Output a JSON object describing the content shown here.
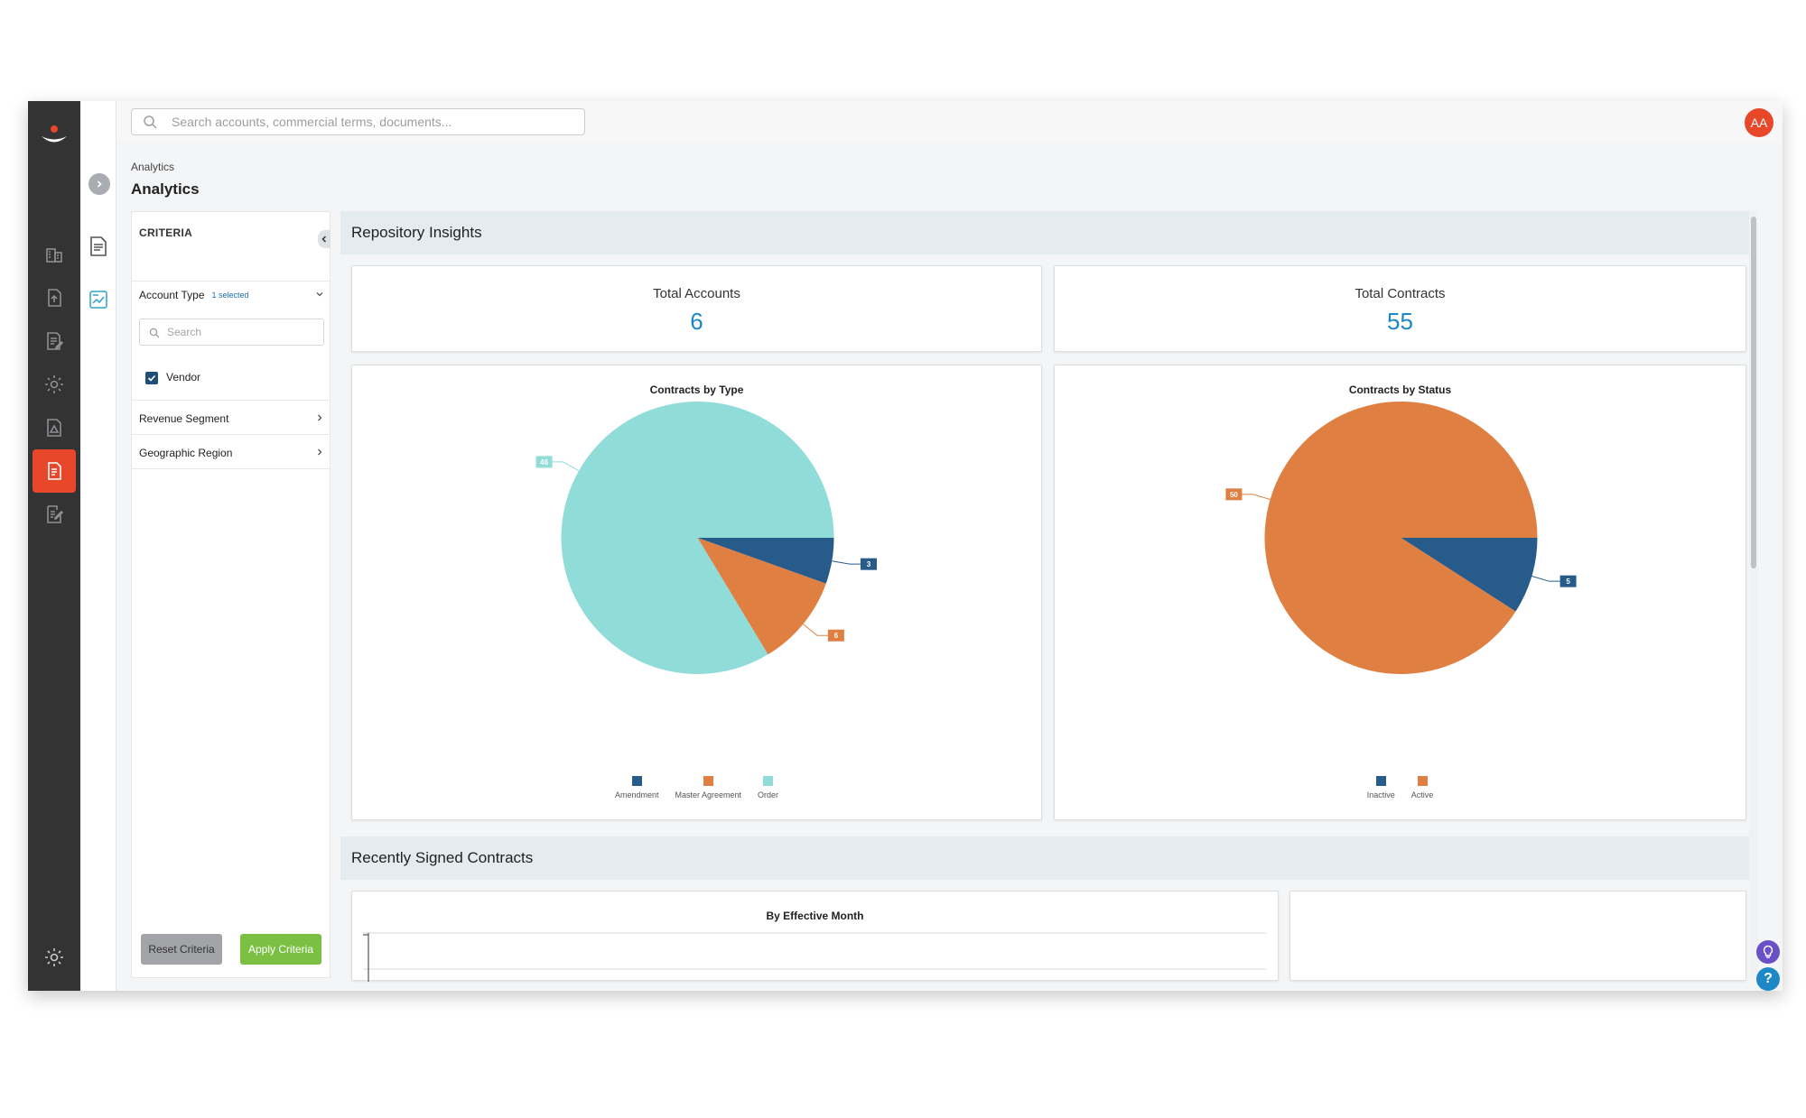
{
  "search": {
    "placeholder": "Search accounts, commercial terms, documents..."
  },
  "user": {
    "initials": "AA"
  },
  "breadcrumb": "Analytics",
  "page_title": "Analytics",
  "criteria": {
    "title": "CRITERIA",
    "account_type": {
      "label": "Account Type",
      "selected_note": "1 selected"
    },
    "search_placeholder": "Search",
    "vendor_label": "Vendor",
    "revenue_segment": "Revenue Segment",
    "geographic_region": "Geographic Region",
    "reset_label": "Reset Criteria",
    "apply_label": "Apply Criteria"
  },
  "insights": {
    "heading": "Repository Insights",
    "total_accounts_label": "Total Accounts",
    "total_accounts_value": "6",
    "total_contracts_label": "Total Contracts",
    "total_contracts_value": "55"
  },
  "recent": {
    "heading": "Recently Signed Contracts",
    "chart_title": "By Effective Month"
  },
  "colors": {
    "amendment": "#265b8a",
    "master_agreement": "#df7f42",
    "order": "#90dcd8",
    "accent": "#e8472a",
    "value_blue": "#1e88c6"
  },
  "chart_data": [
    {
      "type": "pie",
      "title": "Contracts by Type",
      "categories": [
        "Amendment",
        "Master Agreement",
        "Order"
      ],
      "values": [
        3,
        6,
        46
      ],
      "colors": [
        "#265b8a",
        "#df7f42",
        "#90dcd8"
      ]
    },
    {
      "type": "pie",
      "title": "Contracts by Status",
      "categories": [
        "Inactive",
        "Active"
      ],
      "values": [
        5,
        50
      ],
      "colors": [
        "#265b8a",
        "#df7f42"
      ]
    }
  ]
}
